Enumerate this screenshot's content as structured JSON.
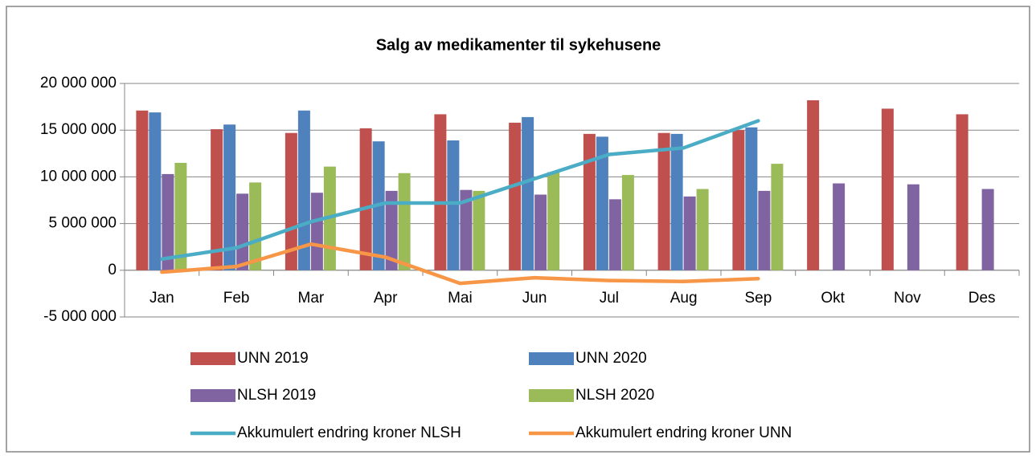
{
  "chart_data": {
    "type": "bar",
    "title": "Salg av medikamenter til sykehusene",
    "categories": [
      "Jan",
      "Feb",
      "Mar",
      "Apr",
      "Mai",
      "Jun",
      "Jul",
      "Aug",
      "Sep",
      "Okt",
      "Nov",
      "Des"
    ],
    "series": [
      {
        "name": "UNN 2019",
        "type": "bar",
        "color": "#c0504d",
        "values": [
          17100000,
          15100000,
          14700000,
          15200000,
          16700000,
          15800000,
          14600000,
          14700000,
          15000000,
          18200000,
          17300000,
          16700000
        ]
      },
      {
        "name": "UNN 2020",
        "type": "bar",
        "color": "#4f81bd",
        "values": [
          16900000,
          15600000,
          17100000,
          13800000,
          13900000,
          16400000,
          14300000,
          14600000,
          15300000,
          null,
          null,
          null
        ]
      },
      {
        "name": "NLSH 2019",
        "type": "bar",
        "color": "#8064a2",
        "values": [
          10300000,
          8200000,
          8300000,
          8500000,
          8600000,
          8100000,
          7600000,
          7900000,
          8500000,
          9300000,
          9200000,
          8700000
        ]
      },
      {
        "name": "NLSH 2020",
        "type": "bar",
        "color": "#9bbb59",
        "values": [
          11500000,
          9400000,
          11100000,
          10400000,
          8500000,
          10500000,
          10200000,
          8700000,
          11400000,
          null,
          null,
          null
        ]
      },
      {
        "name": "Akkumulert endring kroner NLSH",
        "type": "line",
        "color": "#4bacc6",
        "values": [
          1200000,
          2400000,
          5200000,
          7200000,
          7200000,
          9800000,
          12400000,
          13100000,
          16000000,
          null,
          null,
          null
        ]
      },
      {
        "name": "Akkumulert endring kroner UNN",
        "type": "line",
        "color": "#f79646",
        "values": [
          -200000,
          400000,
          2800000,
          1400000,
          -1400000,
          -800000,
          -1100000,
          -1200000,
          -900000,
          null,
          null,
          null
        ]
      }
    ],
    "ylim": [
      -5000000,
      20000000
    ],
    "yticks": [
      {
        "value": -5000000,
        "label": "-5 000 000"
      },
      0,
      {
        "value": 5000000,
        "label": "5 000 000"
      },
      {
        "value": 10000000,
        "label": "10 000 000"
      },
      {
        "value": 15000000,
        "label": "15 000 000"
      },
      {
        "value": 20000000,
        "label": "20 000 000"
      }
    ],
    "grid": true,
    "legend": "bottom"
  }
}
